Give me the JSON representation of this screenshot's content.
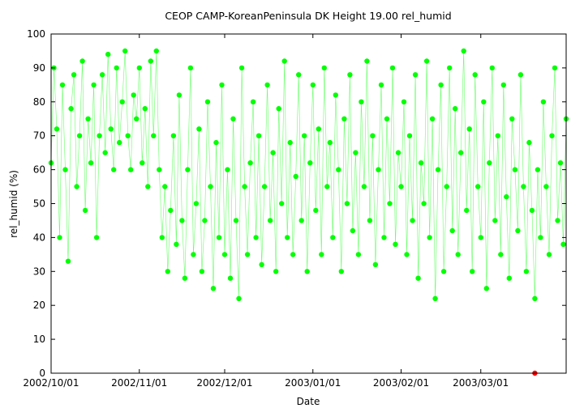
{
  "chart_data": {
    "type": "scatter",
    "title": "CEOP CAMP-KoreanPeninsula DK Height 19.00 rel_humid",
    "xlabel": "Date",
    "ylabel": "rel_humid (%)",
    "x_range": [
      "2002-10-01",
      "2003-03-31"
    ],
    "ylim": [
      0,
      100
    ],
    "y_ticks": [
      "0",
      "10",
      "20",
      "30",
      "40",
      "50",
      "60",
      "70",
      "80",
      "90",
      "100"
    ],
    "x_ticks": [
      {
        "date": "2002-10-01",
        "label": "2002/10/01"
      },
      {
        "date": "2002-11-01",
        "label": "2002/11/01"
      },
      {
        "date": "2002-12-01",
        "label": "2002/12/01"
      },
      {
        "date": "2003-01-01",
        "label": "2003/01/01"
      },
      {
        "date": "2003-02-01",
        "label": "2003/02/01"
      },
      {
        "date": "2003-03-01",
        "label": "2003/03/01"
      }
    ],
    "grid": false,
    "legend": "none",
    "colors": {
      "main": "#00ff00",
      "flagged": "#ff0000"
    },
    "series": [
      {
        "color": "#00ff00",
        "points": [
          [
            "2002-10-01",
            62
          ],
          [
            "2002-10-02",
            90
          ],
          [
            "2002-10-03",
            72
          ],
          [
            "2002-10-04",
            40
          ],
          [
            "2002-10-05",
            85
          ],
          [
            "2002-10-06",
            60
          ],
          [
            "2002-10-07",
            33
          ],
          [
            "2002-10-08",
            78
          ],
          [
            "2002-10-09",
            88
          ],
          [
            "2002-10-10",
            55
          ],
          [
            "2002-10-11",
            70
          ],
          [
            "2002-10-12",
            92
          ],
          [
            "2002-10-13",
            48
          ],
          [
            "2002-10-14",
            75
          ],
          [
            "2002-10-15",
            62
          ],
          [
            "2002-10-16",
            85
          ],
          [
            "2002-10-17",
            40
          ],
          [
            "2002-10-18",
            70
          ],
          [
            "2002-10-19",
            88
          ],
          [
            "2002-10-20",
            65
          ],
          [
            "2002-10-21",
            94
          ],
          [
            "2002-10-22",
            72
          ],
          [
            "2002-10-23",
            60
          ],
          [
            "2002-10-24",
            90
          ],
          [
            "2002-10-25",
            68
          ],
          [
            "2002-10-26",
            80
          ],
          [
            "2002-10-27",
            95
          ],
          [
            "2002-10-28",
            70
          ],
          [
            "2002-10-29",
            60
          ],
          [
            "2002-10-30",
            82
          ],
          [
            "2002-10-31",
            75
          ],
          [
            "2002-11-01",
            90
          ],
          [
            "2002-11-02",
            62
          ],
          [
            "2002-11-03",
            78
          ],
          [
            "2002-11-04",
            55
          ],
          [
            "2002-11-05",
            92
          ],
          [
            "2002-11-06",
            70
          ],
          [
            "2002-11-07",
            95
          ],
          [
            "2002-11-08",
            60
          ],
          [
            "2002-11-09",
            40
          ],
          [
            "2002-11-10",
            55
          ],
          [
            "2002-11-11",
            30
          ],
          [
            "2002-11-12",
            48
          ],
          [
            "2002-11-13",
            70
          ],
          [
            "2002-11-14",
            38
          ],
          [
            "2002-11-15",
            82
          ],
          [
            "2002-11-16",
            45
          ],
          [
            "2002-11-17",
            28
          ],
          [
            "2002-11-18",
            60
          ],
          [
            "2002-11-19",
            90
          ],
          [
            "2002-11-20",
            35
          ],
          [
            "2002-11-21",
            50
          ],
          [
            "2002-11-22",
            72
          ],
          [
            "2002-11-23",
            30
          ],
          [
            "2002-11-24",
            45
          ],
          [
            "2002-11-25",
            80
          ],
          [
            "2002-11-26",
            55
          ],
          [
            "2002-11-27",
            25
          ],
          [
            "2002-11-28",
            68
          ],
          [
            "2002-11-29",
            40
          ],
          [
            "2002-11-30",
            85
          ],
          [
            "2002-12-01",
            35
          ],
          [
            "2002-12-02",
            60
          ],
          [
            "2002-12-03",
            28
          ],
          [
            "2002-12-04",
            75
          ],
          [
            "2002-12-05",
            45
          ],
          [
            "2002-12-06",
            22
          ],
          [
            "2002-12-07",
            90
          ],
          [
            "2002-12-08",
            55
          ],
          [
            "2002-12-09",
            35
          ],
          [
            "2002-12-10",
            62
          ],
          [
            "2002-12-11",
            80
          ],
          [
            "2002-12-12",
            40
          ],
          [
            "2002-12-13",
            70
          ],
          [
            "2002-12-14",
            32
          ],
          [
            "2002-12-15",
            55
          ],
          [
            "2002-12-16",
            85
          ],
          [
            "2002-12-17",
            45
          ],
          [
            "2002-12-18",
            65
          ],
          [
            "2002-12-19",
            30
          ],
          [
            "2002-12-20",
            78
          ],
          [
            "2002-12-21",
            50
          ],
          [
            "2002-12-22",
            92
          ],
          [
            "2002-12-23",
            40
          ],
          [
            "2002-12-24",
            68
          ],
          [
            "2002-12-25",
            35
          ],
          [
            "2002-12-26",
            58
          ],
          [
            "2002-12-27",
            88
          ],
          [
            "2002-12-28",
            45
          ],
          [
            "2002-12-29",
            70
          ],
          [
            "2002-12-30",
            30
          ],
          [
            "2002-12-31",
            62
          ],
          [
            "2003-01-01",
            85
          ],
          [
            "2003-01-02",
            48
          ],
          [
            "2003-01-03",
            72
          ],
          [
            "2003-01-04",
            35
          ],
          [
            "2003-01-05",
            90
          ],
          [
            "2003-01-06",
            55
          ],
          [
            "2003-01-07",
            68
          ],
          [
            "2003-01-08",
            40
          ],
          [
            "2003-01-09",
            82
          ],
          [
            "2003-01-10",
            60
          ],
          [
            "2003-01-11",
            30
          ],
          [
            "2003-01-12",
            75
          ],
          [
            "2003-01-13",
            50
          ],
          [
            "2003-01-14",
            88
          ],
          [
            "2003-01-15",
            42
          ],
          [
            "2003-01-16",
            65
          ],
          [
            "2003-01-17",
            35
          ],
          [
            "2003-01-18",
            80
          ],
          [
            "2003-01-19",
            55
          ],
          [
            "2003-01-20",
            92
          ],
          [
            "2003-01-21",
            45
          ],
          [
            "2003-01-22",
            70
          ],
          [
            "2003-01-23",
            32
          ],
          [
            "2003-01-24",
            60
          ],
          [
            "2003-01-25",
            85
          ],
          [
            "2003-01-26",
            40
          ],
          [
            "2003-01-27",
            75
          ],
          [
            "2003-01-28",
            50
          ],
          [
            "2003-01-29",
            90
          ],
          [
            "2003-01-30",
            38
          ],
          [
            "2003-01-31",
            65
          ],
          [
            "2003-02-01",
            55
          ],
          [
            "2003-02-02",
            80
          ],
          [
            "2003-02-03",
            35
          ],
          [
            "2003-02-04",
            70
          ],
          [
            "2003-02-05",
            45
          ],
          [
            "2003-02-06",
            88
          ],
          [
            "2003-02-07",
            28
          ],
          [
            "2003-02-08",
            62
          ],
          [
            "2003-02-09",
            50
          ],
          [
            "2003-02-10",
            92
          ],
          [
            "2003-02-11",
            40
          ],
          [
            "2003-02-12",
            75
          ],
          [
            "2003-02-13",
            22
          ],
          [
            "2003-02-14",
            60
          ],
          [
            "2003-02-15",
            85
          ],
          [
            "2003-02-16",
            30
          ],
          [
            "2003-02-17",
            55
          ],
          [
            "2003-02-18",
            90
          ],
          [
            "2003-02-19",
            42
          ],
          [
            "2003-02-20",
            78
          ],
          [
            "2003-02-21",
            35
          ],
          [
            "2003-02-22",
            65
          ],
          [
            "2003-02-23",
            95
          ],
          [
            "2003-02-24",
            48
          ],
          [
            "2003-02-25",
            72
          ],
          [
            "2003-02-26",
            30
          ],
          [
            "2003-02-27",
            88
          ],
          [
            "2003-02-28",
            55
          ],
          [
            "2003-03-01",
            40
          ],
          [
            "2003-03-02",
            80
          ],
          [
            "2003-03-03",
            25
          ],
          [
            "2003-03-04",
            62
          ],
          [
            "2003-03-05",
            90
          ],
          [
            "2003-03-06",
            45
          ],
          [
            "2003-03-07",
            70
          ],
          [
            "2003-03-08",
            35
          ],
          [
            "2003-03-09",
            85
          ],
          [
            "2003-03-10",
            52
          ],
          [
            "2003-03-11",
            28
          ],
          [
            "2003-03-12",
            75
          ],
          [
            "2003-03-13",
            60
          ],
          [
            "2003-03-14",
            42
          ],
          [
            "2003-03-15",
            88
          ],
          [
            "2003-03-16",
            55
          ],
          [
            "2003-03-17",
            30
          ],
          [
            "2003-03-18",
            68
          ],
          [
            "2003-03-19",
            48
          ],
          [
            "2003-03-20",
            22
          ],
          [
            "2003-03-21",
            60
          ],
          [
            "2003-03-22",
            40
          ],
          [
            "2003-03-23",
            80
          ],
          [
            "2003-03-24",
            55
          ],
          [
            "2003-03-25",
            35
          ],
          [
            "2003-03-26",
            70
          ],
          [
            "2003-03-27",
            90
          ],
          [
            "2003-03-28",
            45
          ],
          [
            "2003-03-29",
            62
          ],
          [
            "2003-03-30",
            38
          ],
          [
            "2003-03-31",
            75
          ]
        ]
      },
      {
        "color": "#ff0000",
        "points": [
          [
            "2003-03-20",
            0
          ]
        ]
      }
    ]
  }
}
